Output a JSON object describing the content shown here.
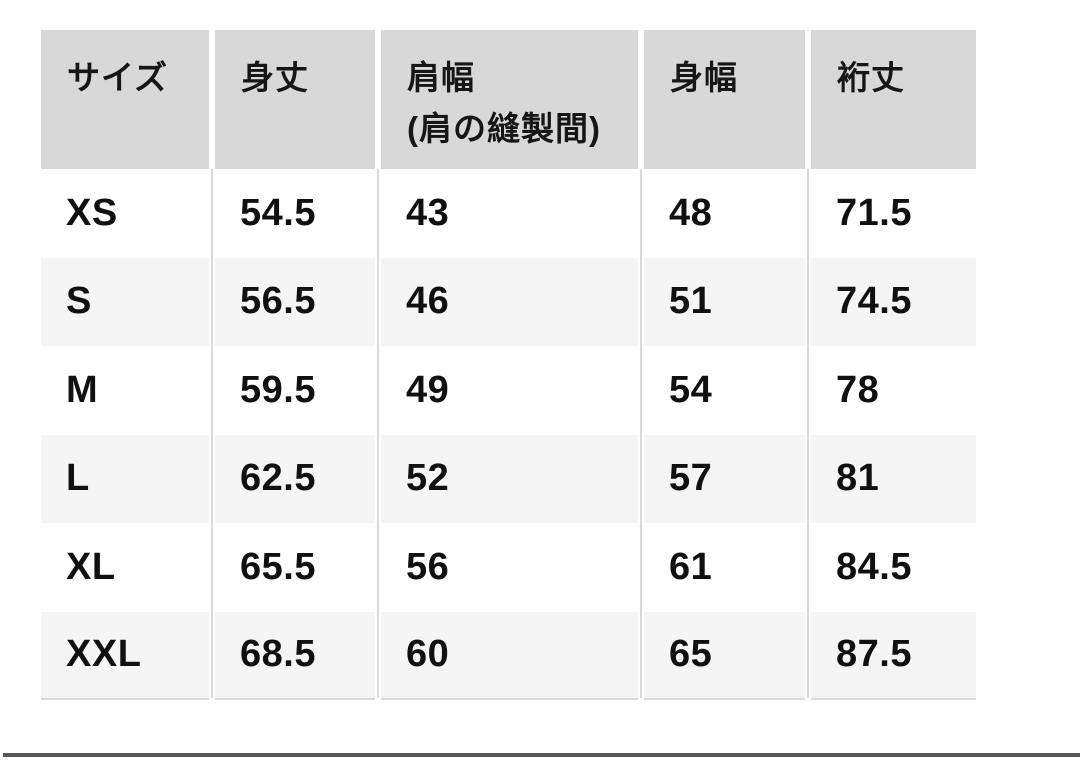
{
  "colors": {
    "header_background": "#d8d8d8",
    "stripe_background": "#f5f5f6",
    "divider": "#d9d9d9",
    "text": "#101010",
    "bottom_rule": "#57585c"
  },
  "table": {
    "columns": [
      {
        "label": "サイズ",
        "sublabel": ""
      },
      {
        "label": "身丈",
        "sublabel": ""
      },
      {
        "label": "肩幅",
        "sublabel": "(肩の縫製間)"
      },
      {
        "label": "身幅",
        "sublabel": ""
      },
      {
        "label": "裄丈",
        "sublabel": ""
      }
    ],
    "rows": [
      {
        "size": "XS",
        "body_length": "54.5",
        "shoulder_width": "43",
        "body_width": "48",
        "sleeve_length": "71.5"
      },
      {
        "size": "S",
        "body_length": "56.5",
        "shoulder_width": "46",
        "body_width": "51",
        "sleeve_length": "74.5"
      },
      {
        "size": "M",
        "body_length": "59.5",
        "shoulder_width": "49",
        "body_width": "54",
        "sleeve_length": "78"
      },
      {
        "size": "L",
        "body_length": "62.5",
        "shoulder_width": "52",
        "body_width": "57",
        "sleeve_length": "81"
      },
      {
        "size": "XL",
        "body_length": "65.5",
        "shoulder_width": "56",
        "body_width": "61",
        "sleeve_length": "84.5"
      },
      {
        "size": "XXL",
        "body_length": "68.5",
        "shoulder_width": "60",
        "body_width": "65",
        "sleeve_length": "87.5"
      }
    ]
  },
  "chart_data": {
    "type": "table",
    "title": "",
    "columns": [
      "サイズ",
      "身丈",
      "肩幅 (肩の縫製間)",
      "身幅",
      "裄丈"
    ],
    "rows": [
      [
        "XS",
        54.5,
        43,
        48,
        71.5
      ],
      [
        "S",
        56.5,
        46,
        51,
        74.5
      ],
      [
        "M",
        59.5,
        49,
        54,
        78
      ],
      [
        "L",
        62.5,
        52,
        57,
        81
      ],
      [
        "XL",
        65.5,
        56,
        61,
        84.5
      ],
      [
        "XXL",
        68.5,
        60,
        65,
        87.5
      ]
    ]
  }
}
